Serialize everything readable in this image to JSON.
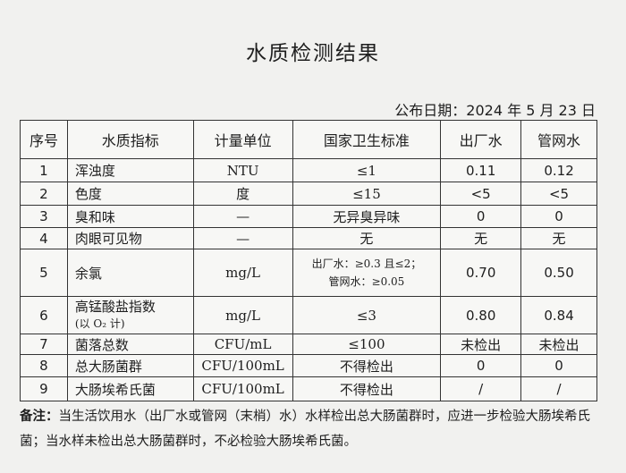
{
  "title": "水质检测结果",
  "date": "公布日期：2024 年 5 月 23 日",
  "headers": [
    "序号",
    "水质指标",
    "计量单位",
    "国家卫生标准",
    "出厂水",
    "管网水"
  ],
  "rows": [
    [
      "1",
      "浑浊度",
      "NTU",
      "≤1",
      "0.11",
      "0.12"
    ],
    [
      "2",
      "色度",
      "度",
      "≤15",
      "<5",
      "<5"
    ],
    [
      "3",
      "臭和味",
      "—",
      "无异臭异味",
      "0",
      "0"
    ],
    [
      "4",
      "肉眼可见物",
      "—",
      "无",
      "无",
      "无"
    ],
    [
      "5",
      "余氯",
      "mg/L",
      "出厂水：≥0.3 且≤2；",
      "0.70",
      "0.50"
    ],
    [
      "6",
      "高锰酸盐指数",
      "mg/L",
      "≤3",
      "0.80",
      "0.84"
    ],
    [
      "7",
      "菌落总数",
      "CFU/mL",
      "≤100",
      "未检出",
      "未检出"
    ],
    [
      "8",
      "总大肠菌群",
      "CFU/100mL",
      "不得检出",
      "0",
      "0"
    ],
    [
      "9",
      "大肠埃希氏菌",
      "CFU/100mL",
      "不得检出",
      "/",
      "/"
    ]
  ],
  "row5_std_line2": "管网水：≥0.05",
  "row6_sub": "(以 O₂ 计)",
  "note_label": "备注：",
  "note_text": "当生活饮用水（出厂水或管网（末梢）水）水样检出总大肠菌群时，应进一步检验大肠埃希氏菌；当水样未检出总大肠菌群时，不必检验大肠埃希氏菌。"
}
